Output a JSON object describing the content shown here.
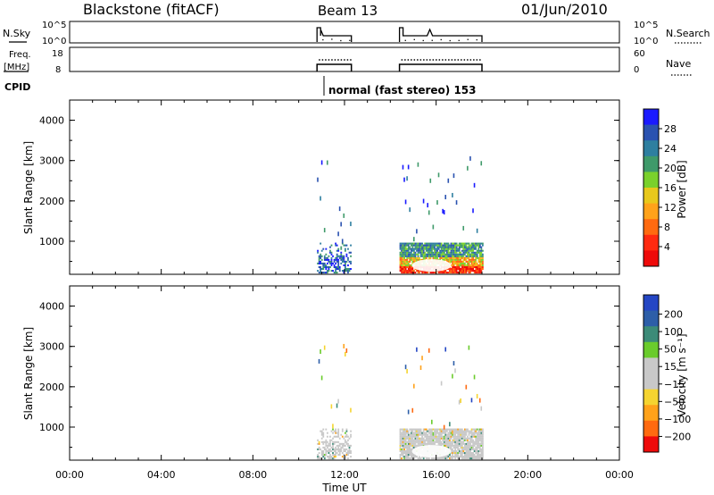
{
  "header": {
    "title": "Blackstone (fitACF)",
    "beam": "Beam 13",
    "date": "01/Jun/2010"
  },
  "strip_nsky": {
    "left_label": "N.Sky",
    "right_label": "N.Search",
    "left_ticks": [
      "10^5",
      "10^0"
    ],
    "right_ticks": [
      "10^5",
      "10^0"
    ]
  },
  "strip_freq": {
    "left_label_line1": "Freq.",
    "left_label_line2": "[MHz]",
    "right_label": "Nave",
    "left_ticks": [
      "18",
      "8"
    ],
    "right_ticks": [
      "60",
      "0"
    ]
  },
  "cpid": {
    "label": "CPID",
    "text": "normal (fast stereo) 153"
  },
  "colors": {
    "power": [
      "#1a1aff",
      "#2a52b0",
      "#2e7fa0",
      "#3f9a6a",
      "#7ad12c",
      "#e8c81b",
      "#ffa21a",
      "#ff6a10",
      "#ff2a10",
      "#ee0a0a"
    ],
    "velocity": [
      "#2446c4",
      "#2d5ea8",
      "#3c8b78",
      "#6acc2c",
      "#c8c8c8",
      "#c8c8c8",
      "#f5d430",
      "#ffa21a",
      "#ff6a10",
      "#ee0a0a"
    ]
  },
  "chart_data": [
    {
      "type": "heatmap",
      "name": "power",
      "ylabel": "Slant Range [km]",
      "yticks": [
        "1000",
        "2000",
        "3000",
        "4000"
      ],
      "ylim": [
        180,
        4500
      ],
      "xlim": [
        0,
        24
      ],
      "colorbar": {
        "label": "Power [dB]",
        "ticks": [
          "4",
          "8",
          "12",
          "16",
          "20",
          "24",
          "28"
        ],
        "range": [
          0,
          32
        ]
      },
      "data_intervals_ut": [
        [
          10.8,
          12.3
        ],
        [
          14.4,
          18.0
        ]
      ]
    },
    {
      "type": "heatmap",
      "name": "velocity",
      "ylabel": "Slant Range [km]",
      "yticks": [
        "1000",
        "2000",
        "3000",
        "4000"
      ],
      "ylim": [
        180,
        4500
      ],
      "xlim": [
        0,
        24
      ],
      "xlabel": "Time UT",
      "xticks": [
        "00:00",
        "04:00",
        "08:00",
        "12:00",
        "16:00",
        "20:00",
        "00:00"
      ],
      "colorbar": {
        "label": "Velocity [m s⁻¹]",
        "ticks": [
          "200",
          "100",
          "50",
          "15",
          "−15",
          "−50",
          "−100",
          "−200"
        ],
        "range": [
          -250,
          250
        ]
      },
      "data_intervals_ut": [
        [
          10.8,
          12.3
        ],
        [
          14.4,
          18.0
        ]
      ]
    }
  ]
}
